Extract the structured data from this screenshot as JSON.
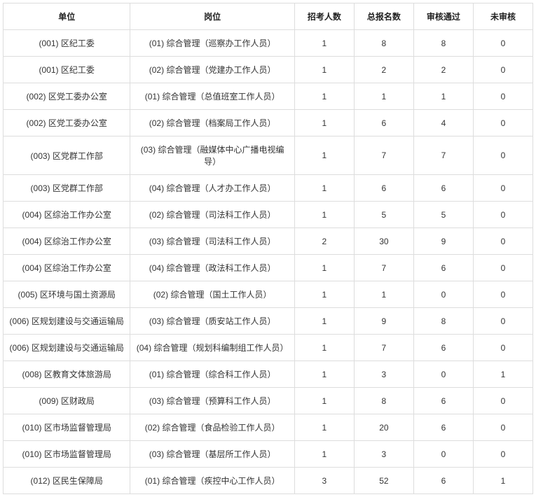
{
  "table": {
    "columns": [
      "单位",
      "岗位",
      "招考人数",
      "总报名数",
      "审核通过",
      "未审核"
    ],
    "rows": [
      [
        "(001) 区纪工委",
        "(01) 综合管理（巡察办工作人员）",
        "1",
        "8",
        "8",
        "0"
      ],
      [
        "(001) 区纪工委",
        "(02) 综合管理（党建办工作人员）",
        "1",
        "2",
        "2",
        "0"
      ],
      [
        "(002) 区党工委办公室",
        "(01) 综合管理（总值班室工作人员）",
        "1",
        "1",
        "1",
        "0"
      ],
      [
        "(002) 区党工委办公室",
        "(02) 综合管理（档案局工作人员）",
        "1",
        "6",
        "4",
        "0"
      ],
      [
        "(003) 区党群工作部",
        "(03) 综合管理（融媒体中心广播电视编导）",
        "1",
        "7",
        "7",
        "0"
      ],
      [
        "(003) 区党群工作部",
        "(04) 综合管理（人才办工作人员）",
        "1",
        "6",
        "6",
        "0"
      ],
      [
        "(004) 区综治工作办公室",
        "(02) 综合管理（司法科工作人员）",
        "1",
        "5",
        "5",
        "0"
      ],
      [
        "(004) 区综治工作办公室",
        "(03) 综合管理（司法科工作人员）",
        "2",
        "30",
        "9",
        "0"
      ],
      [
        "(004) 区综治工作办公室",
        "(04) 综合管理（政法科工作人员）",
        "1",
        "7",
        "6",
        "0"
      ],
      [
        "(005) 区环境与国土资源局",
        "(02) 综合管理（国土工作人员）",
        "1",
        "1",
        "0",
        "0"
      ],
      [
        "(006) 区规划建设与交通运输局",
        "(03) 综合管理（质安站工作人员）",
        "1",
        "9",
        "8",
        "0"
      ],
      [
        "(006) 区规划建设与交通运输局",
        "(04) 综合管理（规划科编制组工作人员）",
        "1",
        "7",
        "6",
        "0"
      ],
      [
        "(008) 区教育文体旅游局",
        "(01) 综合管理（综合科工作人员）",
        "1",
        "3",
        "0",
        "1"
      ],
      [
        "(009) 区财政局",
        "(03) 综合管理（预算科工作人员）",
        "1",
        "8",
        "6",
        "0"
      ],
      [
        "(010) 区市场监督管理局",
        "(02) 综合管理（食品检验工作人员）",
        "1",
        "20",
        "6",
        "0"
      ],
      [
        "(010) 区市场监督管理局",
        "(03) 综合管理（基层所工作人员）",
        "1",
        "3",
        "0",
        "0"
      ],
      [
        "(012) 区民生保障局",
        "(01) 综合管理（疾控中心工作人员）",
        "3",
        "52",
        "6",
        "1"
      ]
    ],
    "col_classes": [
      "c-unit",
      "c-post",
      "c-num",
      "c-num",
      "c-num",
      "c-num"
    ]
  }
}
